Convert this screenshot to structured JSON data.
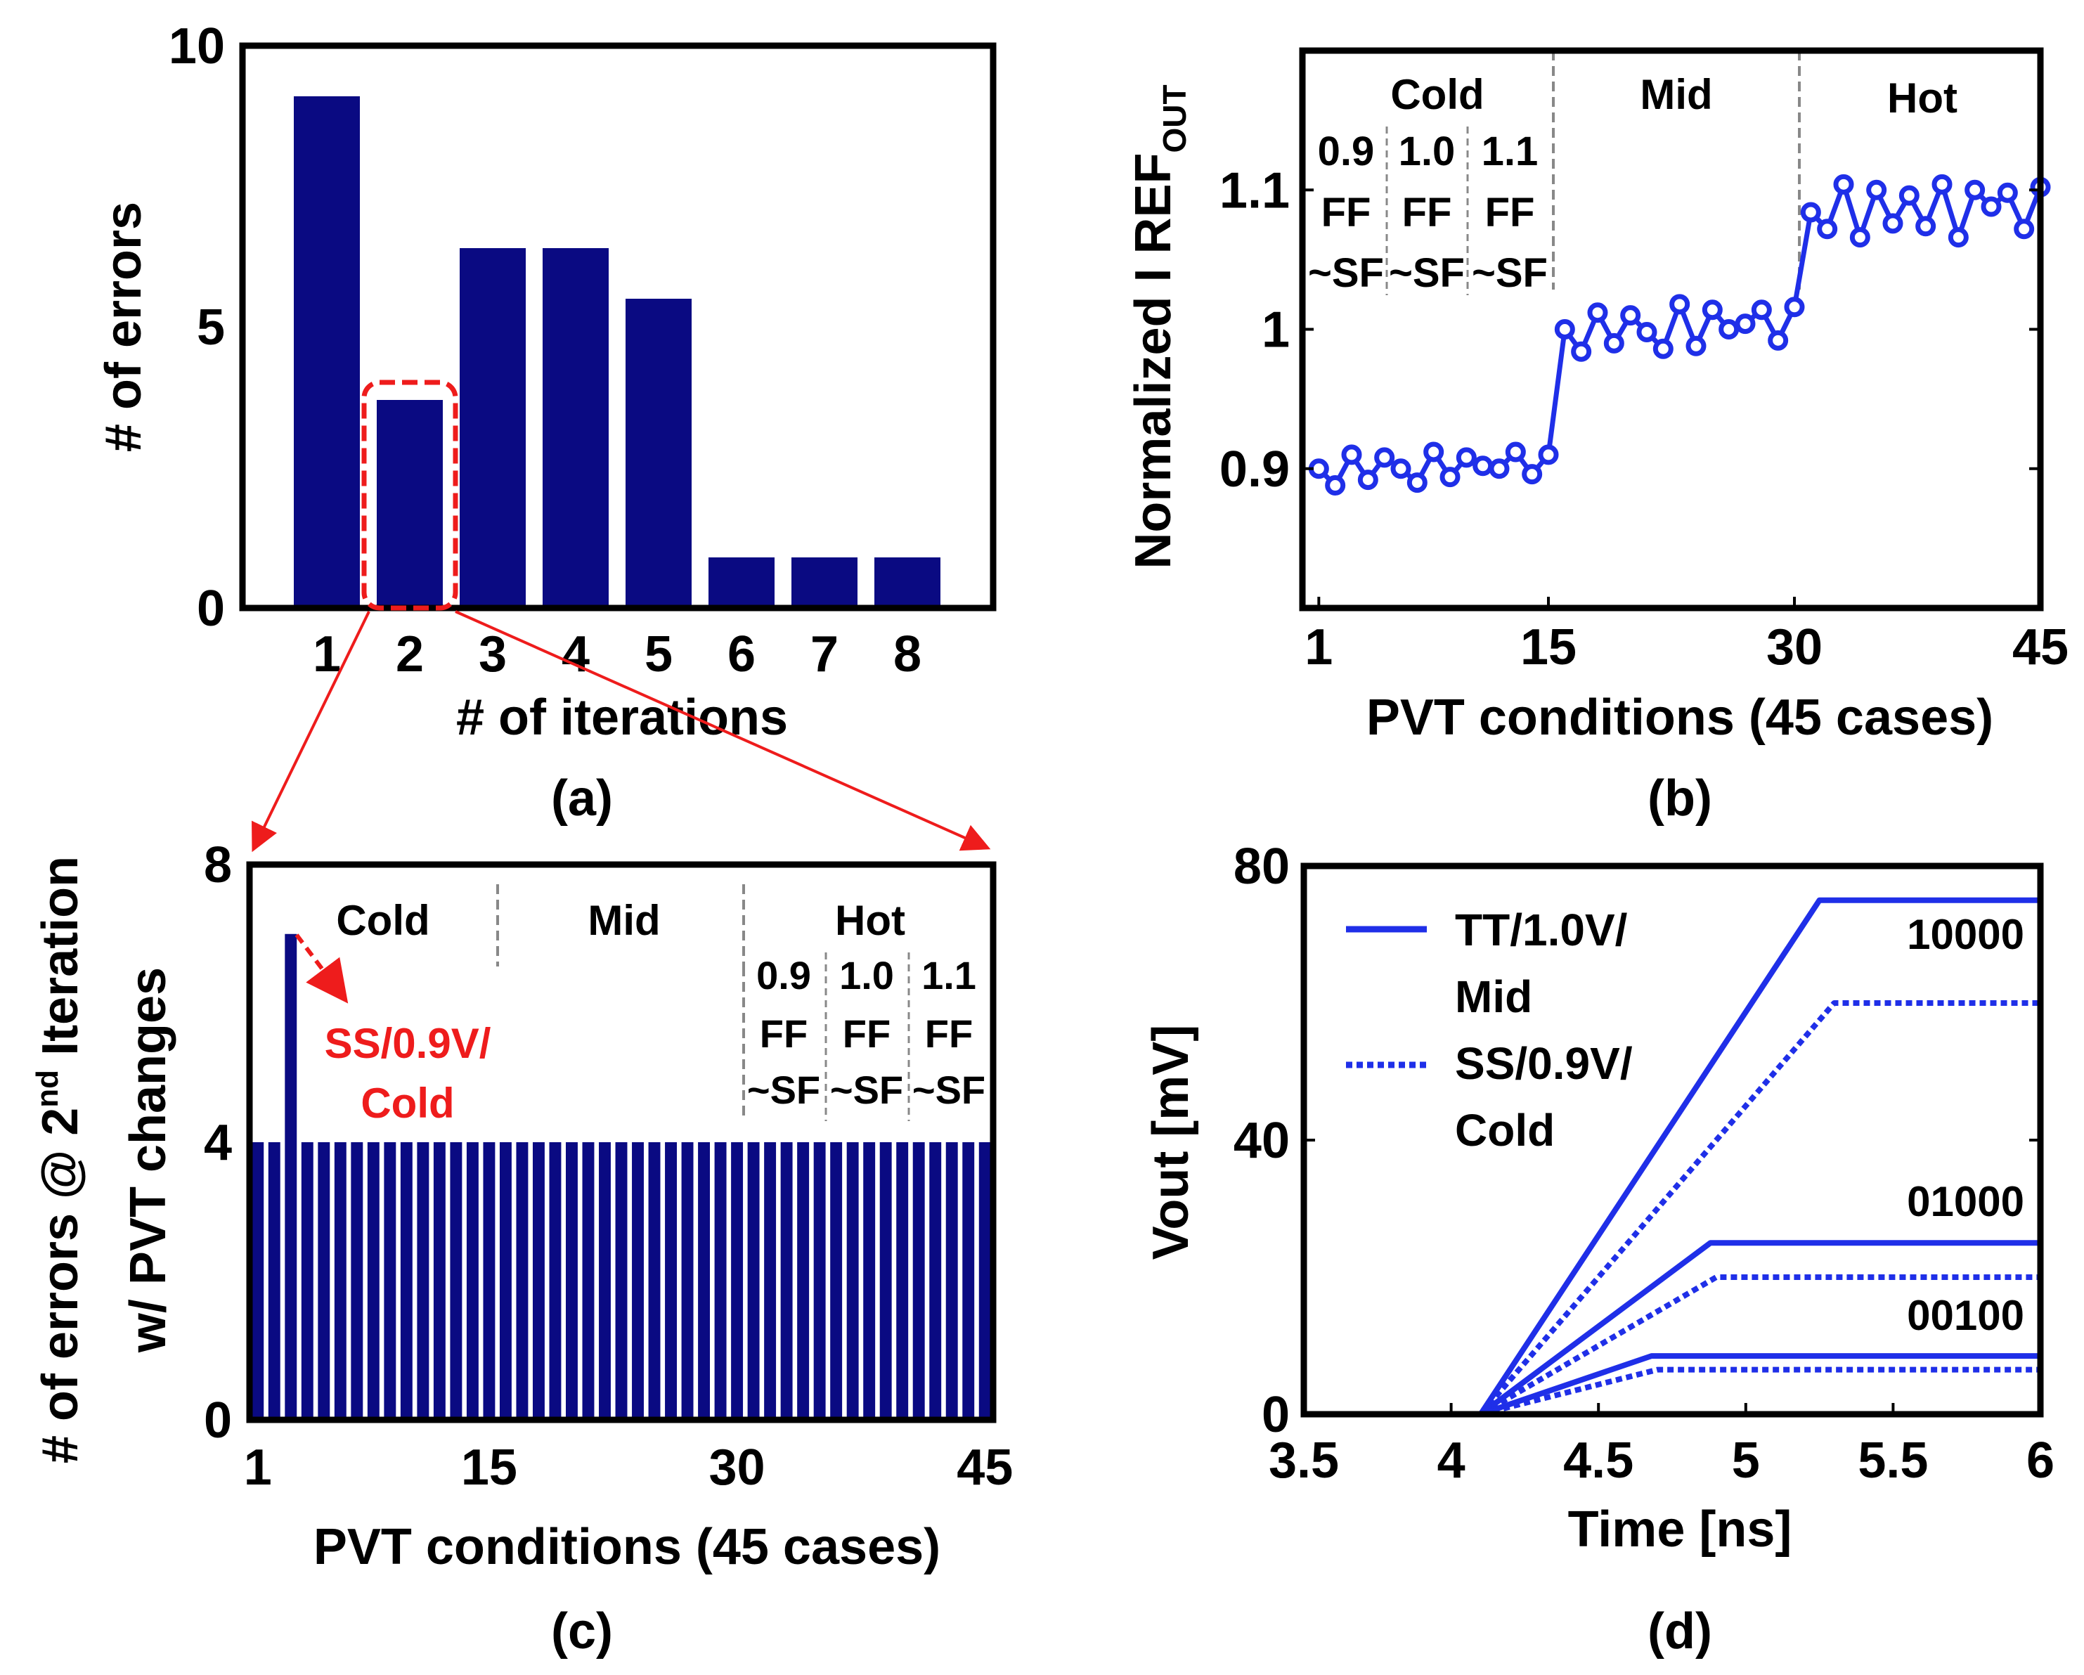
{
  "colors": {
    "bar": "#0a0a82",
    "line": "#1f2fe8",
    "highlight": "#ee1c1c",
    "grid": "#888888",
    "axis": "#000000"
  },
  "chart_data": [
    {
      "id": "a",
      "type": "bar",
      "panel_label": "(a)",
      "xlabel": "# of iterations",
      "ylabel": "# of errors",
      "ylim": [
        0,
        10
      ],
      "yticks": [
        "0",
        "5",
        "10"
      ],
      "categories": [
        "1",
        "2",
        "3",
        "4",
        "5",
        "6",
        "7",
        "8"
      ],
      "values": [
        9.1,
        3.7,
        6.4,
        6.4,
        5.5,
        0.9,
        0.9,
        0.9
      ],
      "highlighted_category": "2"
    },
    {
      "id": "b",
      "type": "line",
      "panel_label": "(b)",
      "xlabel": "PVT conditions (45 cases)",
      "ylabel_main": "Normalized I REF",
      "ylabel_sub": "OUT",
      "xlim": [
        0,
        45
      ],
      "ylim": [
        0.8,
        1.2
      ],
      "xticks": [
        "1",
        "15",
        "30",
        "45"
      ],
      "yticks": [
        "0.9",
        "1",
        "1.1"
      ],
      "regions": [
        "Cold",
        "Mid",
        "Hot"
      ],
      "sub_groups": [
        {
          "v": "0.9",
          "c1": "FF",
          "c2": "~SF"
        },
        {
          "v": "1.0",
          "c1": "FF",
          "c2": "~SF"
        },
        {
          "v": "1.1",
          "c1": "FF",
          "c2": "~SF"
        }
      ],
      "x": [
        1,
        2,
        3,
        4,
        5,
        6,
        7,
        8,
        9,
        10,
        11,
        12,
        13,
        14,
        15,
        16,
        17,
        18,
        19,
        20,
        21,
        22,
        23,
        24,
        25,
        26,
        27,
        28,
        29,
        30,
        31,
        32,
        33,
        34,
        35,
        36,
        37,
        38,
        39,
        40,
        41,
        42,
        43,
        44,
        45
      ],
      "values": [
        0.9,
        0.888,
        0.91,
        0.892,
        0.908,
        0.9,
        0.89,
        0.912,
        0.894,
        0.908,
        0.902,
        0.9,
        0.912,
        0.896,
        0.91,
        1.0,
        0.984,
        1.012,
        0.99,
        1.01,
        0.998,
        0.986,
        1.018,
        0.988,
        1.014,
        1.0,
        1.004,
        1.014,
        0.992,
        1.016,
        1.084,
        1.072,
        1.104,
        1.066,
        1.1,
        1.076,
        1.096,
        1.074,
        1.104,
        1.066,
        1.1,
        1.088,
        1.098,
        1.072,
        1.102
      ]
    },
    {
      "id": "c",
      "type": "bar",
      "panel_label": "(c)",
      "xlabel": "PVT conditions (45 cases)",
      "ylabel_line1_pre": "# of errors @ 2",
      "ylabel_line1_sup": "nd",
      "ylabel_line1_post": " Iteration",
      "ylabel_line2": "w/ PVT changes",
      "xlim": [
        0.5,
        45.5
      ],
      "ylim": [
        0,
        8
      ],
      "xticks": [
        "1",
        "15",
        "30",
        "45"
      ],
      "yticks": [
        "0",
        "4",
        "8"
      ],
      "regions": [
        "Cold",
        "Mid",
        "Hot"
      ],
      "sub_groups": [
        {
          "v": "0.9",
          "c1": "FF",
          "c2": "~SF"
        },
        {
          "v": "1.0",
          "c1": "FF",
          "c2": "~SF"
        },
        {
          "v": "1.1",
          "c1": "FF",
          "c2": "~SF"
        }
      ],
      "x": [
        1,
        2,
        3,
        4,
        5,
        6,
        7,
        8,
        9,
        10,
        11,
        12,
        13,
        14,
        15,
        16,
        17,
        18,
        19,
        20,
        21,
        22,
        23,
        24,
        25,
        26,
        27,
        28,
        29,
        30,
        31,
        32,
        33,
        34,
        35,
        36,
        37,
        38,
        39,
        40,
        41,
        42,
        43,
        44,
        45
      ],
      "values": [
        4,
        4,
        7,
        4,
        4,
        4,
        4,
        4,
        4,
        4,
        4,
        4,
        4,
        4,
        4,
        4,
        4,
        4,
        4,
        4,
        4,
        4,
        4,
        4,
        4,
        4,
        4,
        4,
        4,
        4,
        4,
        4,
        4,
        4,
        4,
        4,
        4,
        4,
        4,
        4,
        4,
        4,
        4,
        4,
        4
      ],
      "annotation_line1": "SS/0.9V/",
      "annotation_line2": "Cold"
    },
    {
      "id": "d",
      "type": "line",
      "panel_label": "(d)",
      "xlabel": "Time [ns]",
      "ylabel": "Vout [mV]",
      "xlim": [
        3.5,
        6
      ],
      "ylim": [
        0,
        80
      ],
      "xticks": [
        "3.5",
        "4",
        "4.5",
        "5",
        "5.5",
        "6"
      ],
      "yticks": [
        "0",
        "40",
        "80"
      ],
      "legend": [
        {
          "line1": "TT/1.0V/",
          "line2": "Mid",
          "style": "solid"
        },
        {
          "line1": "SS/0.9V/",
          "line2": "Cold",
          "style": "dotted"
        }
      ],
      "series": [
        {
          "name": "10000",
          "style": "solid",
          "x": [
            3.5,
            4.1,
            5.25,
            6
          ],
          "y": [
            0,
            0,
            75,
            75
          ]
        },
        {
          "name": "10000",
          "style": "dotted",
          "x": [
            3.5,
            4.1,
            5.3,
            6
          ],
          "y": [
            0,
            0,
            60,
            60
          ]
        },
        {
          "name": "01000",
          "style": "solid",
          "x": [
            3.5,
            4.1,
            4.88,
            6
          ],
          "y": [
            0,
            0,
            25,
            25
          ]
        },
        {
          "name": "01000",
          "style": "dotted",
          "x": [
            3.5,
            4.1,
            4.9,
            6
          ],
          "y": [
            0,
            0,
            20,
            20
          ]
        },
        {
          "name": "00100",
          "style": "solid",
          "x": [
            3.5,
            4.1,
            4.68,
            6
          ],
          "y": [
            0,
            0,
            8.5,
            8.5
          ]
        },
        {
          "name": "00100",
          "style": "dotted",
          "x": [
            3.5,
            4.1,
            4.7,
            6
          ],
          "y": [
            0,
            0,
            6.5,
            6.5
          ]
        }
      ],
      "curve_labels": [
        "10000",
        "01000",
        "00100"
      ]
    }
  ]
}
